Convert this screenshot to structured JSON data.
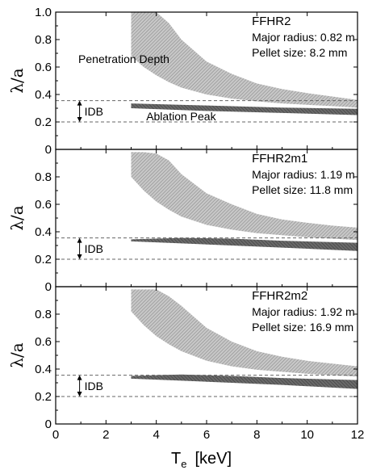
{
  "figure": {
    "xlabel_main": "T",
    "xlabel_sub": "e",
    "xlabel_unit": "[keV]",
    "ylabel": "λ/a"
  },
  "colors": {
    "penetration_band": "#a8a8a8",
    "ablation_band": "#5a5a5a",
    "axis": "#000000",
    "idb_line": "#666666"
  },
  "chart_data": [
    {
      "type": "area",
      "title": "FFHR2",
      "notes": [
        "Major radius: 0.82 m",
        "Pellet size: 8.2 mm"
      ],
      "band_labels": {
        "penetration": "Penetration Depth",
        "ablation": "Ablation Peak",
        "idb": "IDB"
      },
      "xlim": [
        0,
        12
      ],
      "ylim": [
        0,
        1.0
      ],
      "xticks": [
        0,
        2,
        4,
        6,
        8,
        10,
        12
      ],
      "yticks": [
        0,
        0.2,
        0.4,
        0.6,
        0.8,
        1.0
      ],
      "ytick_labels": [
        "0",
        "0.2",
        "0.4",
        "0.6",
        "0.8",
        "1.0"
      ],
      "idb_lines": [
        0.2,
        0.355
      ],
      "series": [
        {
          "x": [
            3,
            3.5,
            4,
            4.5,
            5,
            6,
            7,
            8,
            9,
            10,
            11,
            12
          ],
          "upper": [
            1.0,
            1.0,
            1.0,
            0.92,
            0.8,
            0.64,
            0.55,
            0.48,
            0.44,
            0.41,
            0.385,
            0.36
          ],
          "lower": [
            0.68,
            0.6,
            0.54,
            0.49,
            0.45,
            0.4,
            0.37,
            0.35,
            0.335,
            0.325,
            0.315,
            0.305
          ]
        },
        {
          "x": [
            3,
            6,
            9,
            12
          ],
          "upper": [
            0.335,
            0.32,
            0.305,
            0.295
          ],
          "lower": [
            0.3,
            0.28,
            0.265,
            0.25
          ]
        }
      ]
    },
    {
      "type": "area",
      "title": "FFHR2m1",
      "notes": [
        "Major radius: 1.19 m",
        "Pellet size: 11.8 mm"
      ],
      "band_labels": {
        "penetration": "",
        "ablation": "",
        "idb": "IDB"
      },
      "xlim": [
        0,
        12
      ],
      "ylim": [
        0,
        1.0
      ],
      "xticks": [
        0,
        2,
        4,
        6,
        8,
        10,
        12
      ],
      "yticks": [
        0,
        0.2,
        0.4,
        0.6,
        0.8
      ],
      "ytick_labels": [
        "0",
        "0.2",
        "0.4",
        "0.6",
        "0.8"
      ],
      "idb_lines": [
        0.2,
        0.355
      ],
      "series": [
        {
          "x": [
            3,
            3.5,
            4,
            4.5,
            5,
            6,
            7,
            8,
            9,
            10,
            11,
            12
          ],
          "upper": [
            0.98,
            0.98,
            0.97,
            0.92,
            0.82,
            0.68,
            0.6,
            0.53,
            0.49,
            0.465,
            0.445,
            0.43
          ],
          "lower": [
            0.8,
            0.7,
            0.62,
            0.56,
            0.51,
            0.45,
            0.415,
            0.39,
            0.375,
            0.36,
            0.35,
            0.34
          ]
        },
        {
          "x": [
            3,
            5,
            7,
            9,
            12
          ],
          "upper": [
            0.345,
            0.355,
            0.35,
            0.335,
            0.32
          ],
          "lower": [
            0.33,
            0.315,
            0.3,
            0.285,
            0.26
          ]
        }
      ]
    },
    {
      "type": "area",
      "title": "FFHR2m2",
      "notes": [
        "Major radius: 1.92 m",
        "Pellet size: 16.9 mm"
      ],
      "band_labels": {
        "penetration": "",
        "ablation": "",
        "idb": "IDB"
      },
      "xlim": [
        0,
        12
      ],
      "ylim": [
        0,
        1.0
      ],
      "xticks": [
        0,
        2,
        4,
        6,
        8,
        10,
        12
      ],
      "yticks": [
        0,
        0.2,
        0.4,
        0.6,
        0.8
      ],
      "ytick_labels": [
        "0",
        "0.2",
        "0.4",
        "0.6",
        "0.8"
      ],
      "xtick_labels": [
        "0",
        "2",
        "4",
        "6",
        "8",
        "10",
        "12"
      ],
      "idb_lines": [
        0.2,
        0.355
      ],
      "series": [
        {
          "x": [
            3,
            3.5,
            4,
            4.5,
            5,
            6,
            7,
            8,
            9,
            10,
            11,
            12
          ],
          "upper": [
            0.98,
            0.98,
            0.98,
            0.93,
            0.86,
            0.7,
            0.6,
            0.53,
            0.49,
            0.46,
            0.44,
            0.42
          ],
          "lower": [
            0.82,
            0.72,
            0.64,
            0.58,
            0.53,
            0.46,
            0.42,
            0.395,
            0.38,
            0.365,
            0.355,
            0.345
          ]
        },
        {
          "x": [
            3,
            5,
            7,
            9,
            12
          ],
          "upper": [
            0.35,
            0.36,
            0.35,
            0.335,
            0.32
          ],
          "lower": [
            0.33,
            0.315,
            0.3,
            0.285,
            0.255
          ]
        }
      ]
    }
  ]
}
